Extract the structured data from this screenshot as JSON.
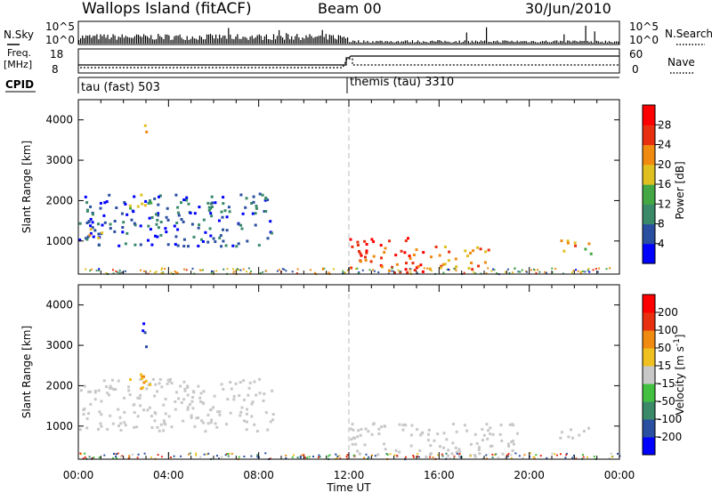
{
  "header": {
    "station": "Wallops Island (fitACF)",
    "beam": "Beam 00",
    "date": "30/Jun/2010"
  },
  "noise_panel": {
    "left_label": "N.Sky",
    "right_label": "N.Search",
    "left_ticks": [
      "10^5",
      "10^0"
    ],
    "right_ticks": [
      "10^5",
      "10^0"
    ]
  },
  "freq_panel": {
    "left_label_1": "Freq.",
    "left_label_2": "[MHz]",
    "left_ticks": [
      "18",
      "8"
    ],
    "right_ticks": [
      "60",
      "0"
    ],
    "right_label": "Nave"
  },
  "cpid_panel": {
    "label": "CPID",
    "modes": [
      {
        "name": "tau (fast) 503",
        "start_hour": 0
      },
      {
        "name": "themis (tau) 3310",
        "start_hour": 12
      }
    ]
  },
  "colorbars": {
    "power": {
      "label": "Power [dB]",
      "ticks": [
        "4",
        "8",
        "12",
        "16",
        "20",
        "24",
        "28"
      ],
      "colors": [
        "#0000ff",
        "#2a4fa0",
        "#3a8a6a",
        "#43a843",
        "#e0c020",
        "#f08a10",
        "#e83010",
        "#ff0000"
      ]
    },
    "velocity": {
      "label": "Velocity [m s^-1]",
      "ticks": [
        "200",
        "100",
        "50",
        "15",
        "-15",
        "-50",
        "-100",
        "-200"
      ],
      "colors": [
        "#0000ff",
        "#2a4fa0",
        "#3a8a6a",
        "#43c040",
        "#c8c8c8",
        "#f0c020",
        "#f08a10",
        "#e83010",
        "#ff0000"
      ]
    }
  },
  "chart_data": [
    {
      "type": "heatmap",
      "title": "",
      "xlabel": "",
      "ylabel": "Slant Range [km]",
      "xlim": [
        0,
        24
      ],
      "ylim": [
        180,
        4500
      ],
      "yticks": [
        "1000",
        "2000",
        "3000",
        "4000"
      ],
      "field": "power",
      "echo_regions": [
        {
          "t0": 0.0,
          "t1": 8.6,
          "r0": 900,
          "r1": 2200,
          "level": 8
        },
        {
          "t0": 2.0,
          "t1": 3.2,
          "r0": 1800,
          "r1": 2200,
          "level": 16
        },
        {
          "t0": 2.8,
          "t1": 3.0,
          "r0": 3400,
          "r1": 3900,
          "level": 24
        },
        {
          "t0": 0.2,
          "t1": 1.0,
          "r0": 1050,
          "r1": 1350,
          "level": 20
        },
        {
          "t0": 12.0,
          "t1": 15.5,
          "r0": 250,
          "r1": 1100,
          "level": 28
        },
        {
          "t0": 15.5,
          "t1": 18.2,
          "r0": 300,
          "r1": 900,
          "level": 24
        },
        {
          "t0": 21.3,
          "t1": 22.2,
          "r0": 700,
          "r1": 1100,
          "level": 24
        },
        {
          "t0": 22.3,
          "t1": 22.8,
          "r0": 700,
          "r1": 1100,
          "level": 20
        }
      ]
    },
    {
      "type": "heatmap",
      "title": "",
      "xlabel": "Time UT",
      "ylabel": "Slant Range [km]",
      "xlim": [
        0,
        24
      ],
      "ylim": [
        180,
        4500
      ],
      "yticks": [
        "1000",
        "2000",
        "3000",
        "4000"
      ],
      "xticks": [
        "00:00",
        "04:00",
        "08:00",
        "12:00",
        "16:00",
        "20:00",
        "00:00"
      ],
      "field": "velocity",
      "echo_regions": [
        {
          "t0": 0.0,
          "t1": 8.6,
          "r0": 900,
          "r1": 2200,
          "level": 0
        },
        {
          "t0": 2.0,
          "t1": 3.2,
          "r0": 1900,
          "r1": 2400,
          "level": -50
        },
        {
          "t0": 2.8,
          "t1": 3.0,
          "r0": 2800,
          "r1": 3900,
          "level": 200
        },
        {
          "t0": 12.0,
          "t1": 19.5,
          "r0": 250,
          "r1": 1100,
          "level": 0
        },
        {
          "t0": 21.3,
          "t1": 22.8,
          "r0": 700,
          "r1": 1000,
          "level": 0
        }
      ]
    }
  ]
}
